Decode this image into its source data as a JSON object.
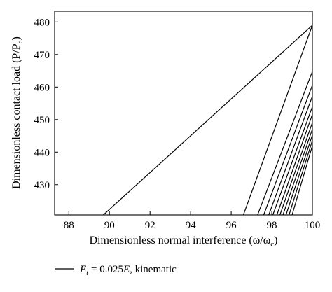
{
  "chart_data": {
    "type": "line",
    "title": "",
    "xlabel": "Dimensionless normal interference (ω/ω",
    "xlabel_sub": "c",
    "xlabel_close": ")",
    "ylabel": "Dimensionless contact load (P/P",
    "ylabel_sub": "c",
    "ylabel_close": ")",
    "xlim": [
      87.3,
      100
    ],
    "ylim": [
      420.7,
      483.3
    ],
    "xticks": [
      88,
      90,
      92,
      94,
      96,
      98,
      100
    ],
    "yticks": [
      430,
      440,
      450,
      460,
      470,
      480
    ],
    "xtick_labels": [
      "88",
      "90",
      "92",
      "94",
      "96",
      "98",
      "100"
    ],
    "ytick_labels": [
      "430",
      "440",
      "450",
      "460",
      "470",
      "480"
    ],
    "grid": false,
    "legend_position": "bottom-left",
    "legend": {
      "prefix": "E",
      "subscript": "t",
      "text": " = 0.025",
      "emph": "E",
      "suffix": ", kinematic"
    },
    "series": [
      {
        "name": "Et = 0.025E, kinematic",
        "x": [
          89.7,
          100.0
        ],
        "y": [
          420.7,
          479.0
        ]
      },
      {
        "x": [
          96.6,
          100.0
        ],
        "y": [
          420.7,
          479.0
        ]
      },
      {
        "x": [
          97.3,
          100.0
        ],
        "y": [
          420.7,
          464.8
        ]
      },
      {
        "x": [
          97.6,
          100.0
        ],
        "y": [
          420.7,
          460.6
        ]
      },
      {
        "x": [
          97.85,
          100.0
        ],
        "y": [
          420.7,
          457.2
        ]
      },
      {
        "x": [
          98.05,
          100.0
        ],
        "y": [
          420.7,
          454.0
        ]
      },
      {
        "x": [
          98.25,
          100.0
        ],
        "y": [
          420.7,
          451.6
        ]
      },
      {
        "x": [
          98.4,
          100.0
        ],
        "y": [
          420.7,
          449.1
        ]
      },
      {
        "x": [
          98.55,
          100.0
        ],
        "y": [
          420.7,
          447.1
        ]
      },
      {
        "x": [
          98.7,
          100.0
        ],
        "y": [
          420.7,
          445.3
        ]
      },
      {
        "x": [
          98.85,
          100.0
        ],
        "y": [
          420.7,
          443.6
        ]
      },
      {
        "x": [
          99.0,
          100.0
        ],
        "y": [
          420.7,
          442.0
        ]
      }
    ],
    "line_color": "#000000"
  }
}
